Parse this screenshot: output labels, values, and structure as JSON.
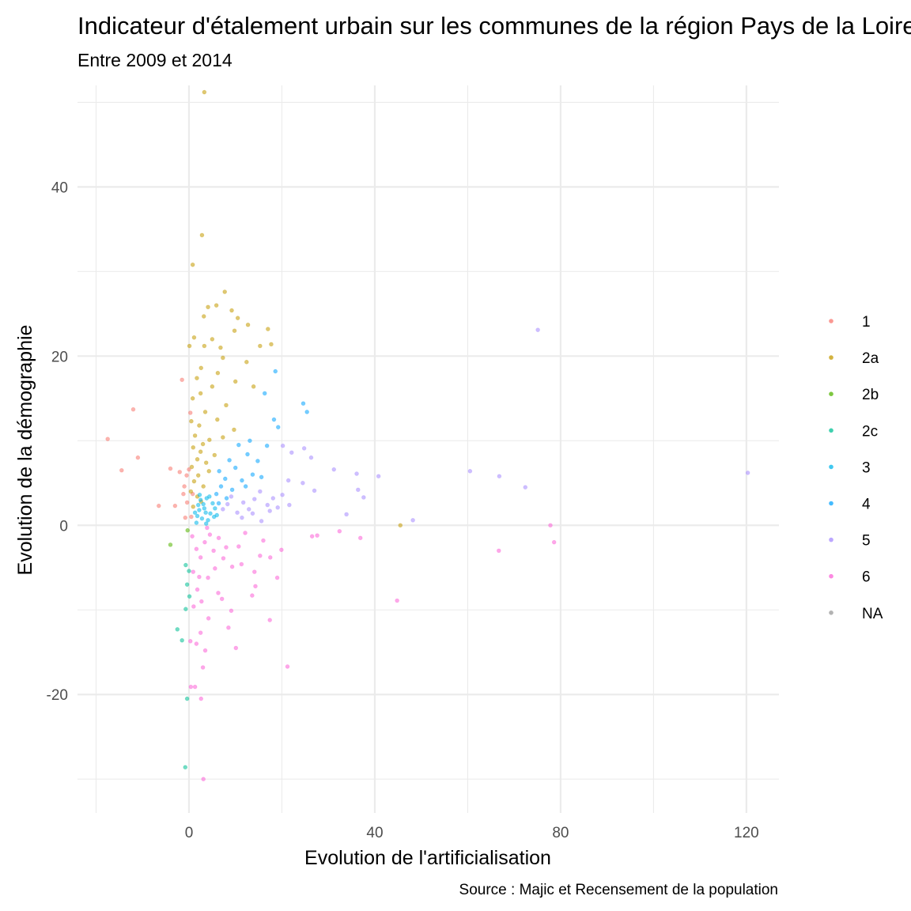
{
  "chart_data": {
    "type": "scatter",
    "title": "Indicateur d'étalement urbain sur les communes de la région Pays de la Loire",
    "subtitle": "Entre 2009 et 2014",
    "xlabel": "Evolution de l'artificialisation",
    "ylabel": "Evolution de la démographie",
    "caption": "Source : Majic et Recensement de la population",
    "xlim": [
      -24,
      127
    ],
    "ylim": [
      -34,
      52
    ],
    "x_ticks": [
      0,
      40,
      80,
      120
    ],
    "x_tick_labels": [
      "0",
      "40",
      "80",
      "120"
    ],
    "y_ticks": [
      -20,
      0,
      20,
      40
    ],
    "y_tick_labels": [
      "-20",
      "0",
      "20",
      "40"
    ],
    "grid": true,
    "legend_position": "right",
    "point_opacity": 0.55,
    "series": [
      {
        "name": "1",
        "color": "#F8766D",
        "points": [
          [
            -17.5,
            10.2
          ],
          [
            -12,
            13.7
          ],
          [
            -14.5,
            6.5
          ],
          [
            -11,
            8
          ],
          [
            -6.5,
            2.3
          ],
          [
            -4,
            6.7
          ],
          [
            -3,
            2.3
          ],
          [
            -2,
            6.3
          ],
          [
            -1.5,
            17.2
          ],
          [
            -1,
            4.6
          ],
          [
            -1.2,
            3.7
          ],
          [
            -0.5,
            5.9
          ],
          [
            0,
            6.6
          ],
          [
            0.3,
            13.3
          ],
          [
            -0.8,
            0.9
          ],
          [
            0.5,
            1
          ],
          [
            -0.4,
            2.7
          ],
          [
            0.8,
            3.7
          ]
        ]
      },
      {
        "name": "2a",
        "color": "#C49A00",
        "points": [
          [
            3.3,
            51.2
          ],
          [
            2.8,
            34.3
          ],
          [
            0.8,
            30.8
          ],
          [
            7.7,
            27.6
          ],
          [
            4.1,
            25.8
          ],
          [
            5.9,
            26
          ],
          [
            9.2,
            25.4
          ],
          [
            3.2,
            24.7
          ],
          [
            10.5,
            24.5
          ],
          [
            12.7,
            23.7
          ],
          [
            17,
            23.2
          ],
          [
            9.8,
            23
          ],
          [
            1.1,
            22.2
          ],
          [
            5,
            22
          ],
          [
            17.7,
            21.4
          ],
          [
            0.1,
            21.2
          ],
          [
            3.3,
            21.2
          ],
          [
            6.8,
            21
          ],
          [
            15.3,
            21.2
          ],
          [
            7.3,
            19.8
          ],
          [
            2.6,
            18.6
          ],
          [
            12.4,
            19.3
          ],
          [
            6.2,
            18
          ],
          [
            1.7,
            17.4
          ],
          [
            10,
            17
          ],
          [
            5,
            16.4
          ],
          [
            2.5,
            15.6
          ],
          [
            13.9,
            16.4
          ],
          [
            0.8,
            15
          ],
          [
            8,
            14.2
          ],
          [
            3.5,
            13.4
          ],
          [
            0.5,
            12.3
          ],
          [
            6.1,
            12.5
          ],
          [
            2.2,
            11.8
          ],
          [
            9.7,
            11.3
          ],
          [
            1.3,
            10.6
          ],
          [
            4.4,
            10.1
          ],
          [
            7.3,
            10.4
          ],
          [
            3,
            9.6
          ],
          [
            0.9,
            9.2
          ],
          [
            2.5,
            8.7
          ],
          [
            5.5,
            8.3
          ],
          [
            1.8,
            7.8
          ],
          [
            3.7,
            7.4
          ],
          [
            0.6,
            6.9
          ],
          [
            4.3,
            6.4
          ],
          [
            2,
            5.9
          ],
          [
            1.1,
            5.2
          ],
          [
            3.1,
            4.6
          ],
          [
            0.4,
            4
          ],
          [
            1.8,
            3.4
          ],
          [
            2.6,
            2.8
          ],
          [
            0.9,
            2.2
          ],
          [
            45.5,
            0
          ]
        ]
      },
      {
        "name": "2b",
        "color": "#53B400",
        "points": [
          [
            -4,
            -2.3
          ],
          [
            -0.3,
            -0.6
          ]
        ]
      },
      {
        "name": "2c",
        "color": "#00C094",
        "points": [
          [
            -0.8,
            -28.6
          ],
          [
            -0.4,
            -20.5
          ],
          [
            -1.5,
            -13.6
          ],
          [
            -2.5,
            -12.3
          ],
          [
            -0.7,
            -9.9
          ],
          [
            0.1,
            -8.4
          ],
          [
            -0.4,
            -7
          ],
          [
            0,
            -5.4
          ],
          [
            -0.7,
            -4.7
          ]
        ]
      },
      {
        "name": "3",
        "color": "#00B6EB",
        "points": [
          [
            2.5,
            3
          ],
          [
            3.1,
            2.5
          ],
          [
            2.2,
            1.8
          ],
          [
            3.6,
            1.5
          ],
          [
            1.8,
            1.1
          ],
          [
            2.8,
            0.8
          ],
          [
            4.1,
            0.6
          ],
          [
            1.6,
            0.3
          ],
          [
            3.3,
            2
          ],
          [
            4.6,
            1.4
          ],
          [
            5.6,
            2
          ],
          [
            2.3,
            3.6
          ],
          [
            3.8,
            3.2
          ],
          [
            4.4,
            3.4
          ],
          [
            5.1,
            2.6
          ],
          [
            5.4,
            1
          ],
          [
            1.3,
            1.5
          ],
          [
            3.7,
            0.2
          ],
          [
            2,
            2.4
          ],
          [
            6,
            1.2
          ]
        ]
      },
      {
        "name": "4",
        "color": "#06A4FF",
        "points": [
          [
            18.6,
            18.2
          ],
          [
            16.3,
            15.6
          ],
          [
            24.6,
            14.4
          ],
          [
            25.4,
            13.4
          ],
          [
            18.3,
            12.5
          ],
          [
            19.2,
            11.6
          ],
          [
            13.1,
            10
          ],
          [
            10.7,
            9.5
          ],
          [
            16.8,
            9.4
          ],
          [
            12.6,
            8.4
          ],
          [
            14.8,
            7.6
          ],
          [
            8.7,
            7.7
          ],
          [
            10,
            6.8
          ],
          [
            6.5,
            6.4
          ],
          [
            13.7,
            6
          ],
          [
            7.8,
            5.5
          ],
          [
            11.4,
            5.3
          ],
          [
            6.9,
            4.6
          ],
          [
            9.3,
            4.2
          ],
          [
            5.9,
            3.7
          ],
          [
            8.1,
            3.2
          ],
          [
            12.2,
            4.6
          ],
          [
            15.6,
            5.7
          ],
          [
            6.4,
            2.6
          ]
        ]
      },
      {
        "name": "5",
        "color": "#A58AFF",
        "points": [
          [
            120.3,
            6.2
          ],
          [
            75.1,
            23.1
          ],
          [
            60.5,
            6.4
          ],
          [
            66.8,
            5.8
          ],
          [
            72.4,
            4.5
          ],
          [
            48.2,
            0.6
          ],
          [
            40.8,
            5.8
          ],
          [
            36.1,
            6.1
          ],
          [
            37.6,
            3.3
          ],
          [
            36.4,
            4.2
          ],
          [
            33.9,
            1.3
          ],
          [
            31.2,
            6.6
          ],
          [
            26.3,
            8
          ],
          [
            24.8,
            9.1
          ],
          [
            22.1,
            8.6
          ],
          [
            20.2,
            9.4
          ],
          [
            21.4,
            5.3
          ],
          [
            24.5,
            5
          ],
          [
            27,
            4.1
          ],
          [
            20.1,
            3.6
          ],
          [
            18.1,
            3.2
          ],
          [
            16.9,
            2.4
          ],
          [
            15.3,
            4
          ],
          [
            14.1,
            3.1
          ],
          [
            12.9,
            1.9
          ],
          [
            11.7,
            2.7
          ],
          [
            10.4,
            1.5
          ],
          [
            9.1,
            3.4
          ],
          [
            8.3,
            2.5
          ],
          [
            7.3,
            1.9
          ],
          [
            11.4,
            0.9
          ],
          [
            13.7,
            1.4
          ],
          [
            15.6,
            0.5
          ],
          [
            17.4,
            1.7
          ],
          [
            19.1,
            2.1
          ],
          [
            21.6,
            2.4
          ]
        ]
      },
      {
        "name": "6",
        "color": "#FB61D7",
        "points": [
          [
            77.8,
            0
          ],
          [
            78.6,
            -2
          ],
          [
            66.7,
            -3
          ],
          [
            44.8,
            -8.9
          ],
          [
            36.9,
            -1.5
          ],
          [
            32.4,
            -0.7
          ],
          [
            27.6,
            -1.2
          ],
          [
            26.5,
            -1.3
          ],
          [
            21.2,
            -16.7
          ],
          [
            17.4,
            -11.2
          ],
          [
            19,
            -6.2
          ],
          [
            19.9,
            -2.9
          ],
          [
            17.5,
            -3.8
          ],
          [
            15.3,
            -3.6
          ],
          [
            14.3,
            -7.2
          ],
          [
            13.6,
            -8.3
          ],
          [
            10.1,
            -14.5
          ],
          [
            9.1,
            -10.1
          ],
          [
            8.5,
            -12.1
          ],
          [
            3.1,
            -30
          ],
          [
            2.6,
            -20.5
          ],
          [
            1.3,
            -19.1
          ],
          [
            0.4,
            -19.1
          ],
          [
            3,
            -16.8
          ],
          [
            3.5,
            -14.8
          ],
          [
            1.6,
            -14
          ],
          [
            2.5,
            -12.7
          ],
          [
            0.3,
            -13.7
          ],
          [
            2.7,
            -9
          ],
          [
            1.8,
            -7.6
          ],
          [
            4.1,
            -6.2
          ],
          [
            5.6,
            -5.1
          ],
          [
            6.3,
            -8
          ],
          [
            7.4,
            -3.9
          ],
          [
            9.3,
            -4.9
          ],
          [
            10.7,
            -2.5
          ],
          [
            12.1,
            -0.9
          ],
          [
            0.7,
            -1.3
          ],
          [
            1.6,
            -2.8
          ],
          [
            2.5,
            -3.8
          ],
          [
            3.4,
            -2
          ],
          [
            4.5,
            -1.1
          ],
          [
            5.3,
            -3
          ],
          [
            0.9,
            -5.5
          ],
          [
            2.2,
            -6.1
          ],
          [
            3.9,
            -0.3
          ],
          [
            6.4,
            -1.5
          ],
          [
            8,
            -2.6
          ],
          [
            11.3,
            -4.6
          ],
          [
            14.1,
            -5.5
          ],
          [
            16,
            -1.8
          ],
          [
            1,
            -9.6
          ],
          [
            4.2,
            -11
          ],
          [
            7.1,
            -8.7
          ]
        ]
      },
      {
        "name": "NA",
        "color": "#999999",
        "points": []
      }
    ]
  }
}
